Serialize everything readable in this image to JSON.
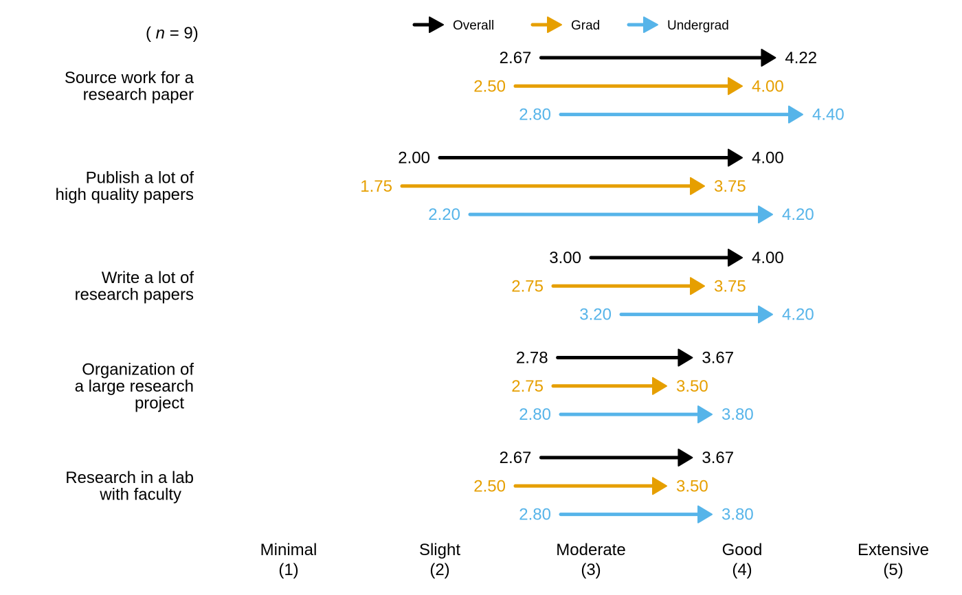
{
  "chart_data": {
    "type": "arrow",
    "n_annotation": {
      "prefix": "(",
      "italic": "n",
      "suffix": "= 9)"
    },
    "x_ticks": [
      {
        "value": 1,
        "label": "Minimal",
        "sub": "(1)"
      },
      {
        "value": 2,
        "label": "Slight",
        "sub": "(2)"
      },
      {
        "value": 3,
        "label": "Moderate",
        "sub": "(3)"
      },
      {
        "value": 4,
        "label": "Good",
        "sub": "(4)"
      },
      {
        "value": 5,
        "label": "Extensive",
        "sub": "(5)"
      }
    ],
    "xlim": [
      1,
      5
    ],
    "legend": [
      {
        "name": "Overall",
        "color": "#000000"
      },
      {
        "name": "Grad",
        "color": "#E69F00"
      },
      {
        "name": "Undergrad",
        "color": "#56B4E9"
      }
    ],
    "categories": [
      {
        "label": [
          "Source work for  a",
          "research  paper"
        ],
        "series": [
          {
            "name": "Overall",
            "from": 2.67,
            "to": 4.22,
            "from_label": "2.67",
            "to_label": "4.22"
          },
          {
            "name": "Grad",
            "from": 2.5,
            "to": 4.0,
            "from_label": "2.50",
            "to_label": "4.00"
          },
          {
            "name": "Undergrad",
            "from": 2.8,
            "to": 4.4,
            "from_label": "2.80",
            "to_label": "4.40"
          }
        ]
      },
      {
        "label": [
          "Publish  a lot   of",
          "high  quality    papers"
        ],
        "series": [
          {
            "name": "Overall",
            "from": 2.0,
            "to": 4.0,
            "from_label": "2.00",
            "to_label": "4.00"
          },
          {
            "name": "Grad",
            "from": 1.75,
            "to": 3.75,
            "from_label": "1.75",
            "to_label": "3.75"
          },
          {
            "name": "Undergrad",
            "from": 2.2,
            "to": 4.2,
            "from_label": "2.20",
            "to_label": "4.20"
          }
        ]
      },
      {
        "label": [
          "Write  a lot   of",
          "research  papers"
        ],
        "series": [
          {
            "name": "Overall",
            "from": 3.0,
            "to": 4.0,
            "from_label": "3.00",
            "to_label": "4.00"
          },
          {
            "name": "Grad",
            "from": 2.75,
            "to": 3.75,
            "from_label": "2.75",
            "to_label": "3.75"
          },
          {
            "name": "Undergrad",
            "from": 3.2,
            "to": 4.2,
            "from_label": "3.20",
            "to_label": "4.20"
          }
        ]
      },
      {
        "label": [
          "Organization   of",
          "a large   research",
          "project"
        ],
        "series": [
          {
            "name": "Overall",
            "from": 2.78,
            "to": 3.67,
            "from_label": "2.78",
            "to_label": "3.67"
          },
          {
            "name": "Grad",
            "from": 2.75,
            "to": 3.5,
            "from_label": "2.75",
            "to_label": "3.50"
          },
          {
            "name": "Undergrad",
            "from": 2.8,
            "to": 3.8,
            "from_label": "2.80",
            "to_label": "3.80"
          }
        ]
      },
      {
        "label": [
          "Research in   a  lab",
          "with   faculty"
        ],
        "series": [
          {
            "name": "Overall",
            "from": 2.67,
            "to": 3.67,
            "from_label": "2.67",
            "to_label": "3.67"
          },
          {
            "name": "Grad",
            "from": 2.5,
            "to": 3.5,
            "from_label": "2.50",
            "to_label": "3.50"
          },
          {
            "name": "Undergrad",
            "from": 2.8,
            "to": 3.8,
            "from_label": "2.80",
            "to_label": "3.80"
          }
        ]
      }
    ]
  }
}
